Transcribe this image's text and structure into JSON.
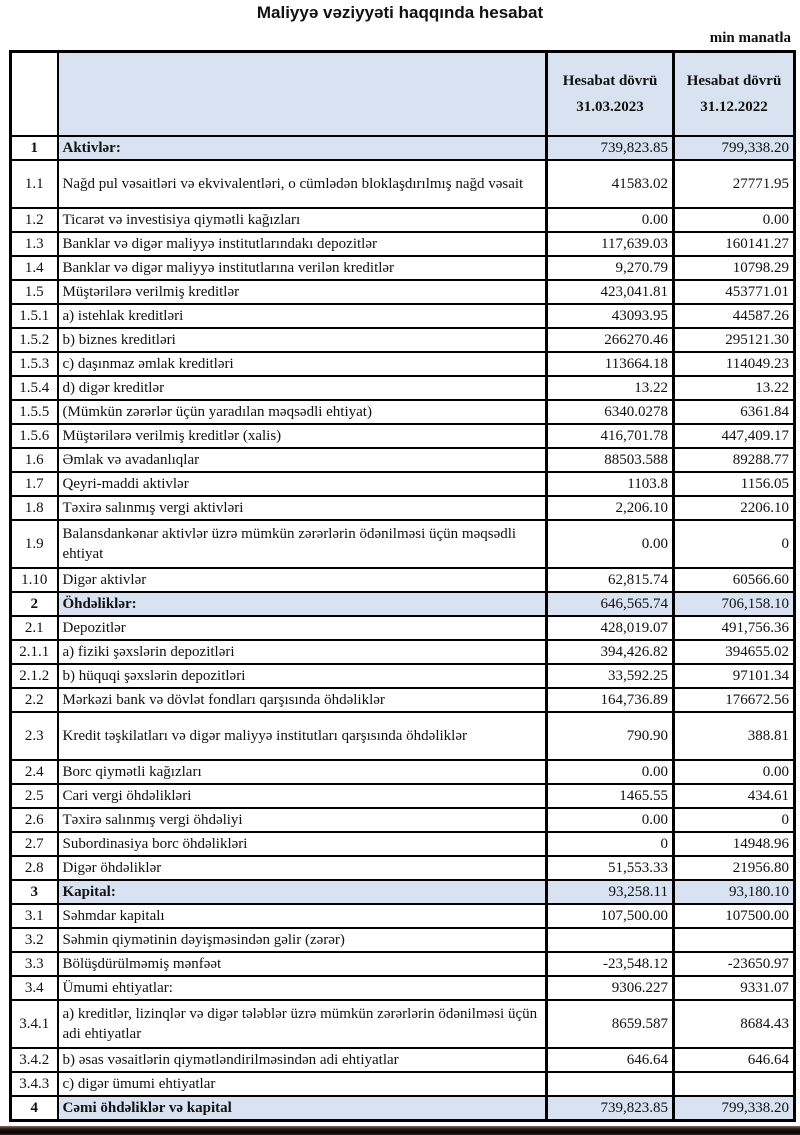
{
  "title": "Maliyyə vəziyyəti haqqında hesabat",
  "unit_note": "min manatla",
  "colors": {
    "header_bg": "#d9e2f1",
    "section_row_bg": "#d9e2f1",
    "border": "#000000",
    "footer_bar": "#140f0e"
  },
  "table": {
    "header": {
      "col_current": {
        "line1": "Hesabat dövrü",
        "line2": "31.03.2023"
      },
      "col_previous": {
        "line1": "Hesabat dövrü",
        "line2": "31.12.2022"
      }
    },
    "rows": [
      {
        "no": "1",
        "label": "Aktivlər:",
        "current": "739,823.85",
        "previous": "799,338.20",
        "section": true,
        "tall": false
      },
      {
        "no": "1.1",
        "label": "Nağd pul vəsaitləri və  ekvivalentləri, o cümlədən bloklaşdırılmış nağd vəsait",
        "current": "41583.02",
        "previous": "27771.95",
        "section": false,
        "tall": true
      },
      {
        "no": "1.2",
        "label": "Ticarət və investisiya qiymətli kağızları",
        "current": "0.00",
        "previous": "0.00",
        "section": false,
        "tall": false
      },
      {
        "no": "1.3",
        "label": "Banklar və digər maliyyə institutlarındakı depozitlər",
        "current": "117,639.03",
        "previous": "160141.27",
        "section": false,
        "tall": false
      },
      {
        "no": "1.4",
        "label": "Banklar və digər maliyyə institutlarına verilən kreditlər",
        "current": "9,270.79",
        "previous": "10798.29",
        "section": false,
        "tall": false
      },
      {
        "no": "1.5",
        "label": "Müştərilərə verilmiş kreditlər",
        "current": "423,041.81",
        "previous": "453771.01",
        "section": false,
        "tall": false
      },
      {
        "no": "1.5.1",
        "label": "a) istehlak kreditləri",
        "current": "43093.95",
        "previous": "44587.26",
        "section": false,
        "tall": false
      },
      {
        "no": "1.5.2",
        "label": "b) biznes kreditləri",
        "current": "266270.46",
        "previous": "295121.30",
        "section": false,
        "tall": false
      },
      {
        "no": "1.5.3",
        "label": "c) daşınmaz əmlak kreditləri",
        "current": "113664.18",
        "previous": "114049.23",
        "section": false,
        "tall": false
      },
      {
        "no": "1.5.4",
        "label": "d) digər kreditlər",
        "current": "13.22",
        "previous": "13.22",
        "section": false,
        "tall": false
      },
      {
        "no": "1.5.5",
        "label": "(Mümkün zərərlər üçün yaradılan məqsədli ehtiyat)",
        "current": "6340.0278",
        "previous": "6361.84",
        "section": false,
        "tall": false
      },
      {
        "no": "1.5.6",
        "label": "Müştərilərə verilmiş kreditlər (xalis)",
        "current": "416,701.78",
        "previous": "447,409.17",
        "section": false,
        "tall": false
      },
      {
        "no": "1.6",
        "label": "Əmlak və avadanlıqlar",
        "current": "88503.588",
        "previous": "89288.77",
        "section": false,
        "tall": false
      },
      {
        "no": "1.7",
        "label": "Qeyri-maddi aktivlər",
        "current": "1103.8",
        "previous": "1156.05",
        "section": false,
        "tall": false
      },
      {
        "no": "1.8",
        "label": "Təxirə salınmış vergi aktivləri",
        "current": "2,206.10",
        "previous": "2206.10",
        "section": false,
        "tall": false
      },
      {
        "no": "1.9",
        "label": "Balansdankənar aktivlər üzrə mümkün zərərlərin ödənilməsi üçün məqsədli ehtiyat",
        "current": "0.00",
        "previous": "0",
        "section": false,
        "tall": true
      },
      {
        "no": "1.10",
        "label": "Digər aktivlər",
        "current": "62,815.74",
        "previous": "60566.60",
        "section": false,
        "tall": false
      },
      {
        "no": "2",
        "label": "Öhdəliklər:",
        "current": "646,565.74",
        "previous": "706,158.10",
        "section": true,
        "tall": false
      },
      {
        "no": "2.1",
        "label": "Depozitlər",
        "current": "428,019.07",
        "previous": "491,756.36",
        "section": false,
        "tall": false
      },
      {
        "no": "2.1.1",
        "label": "a) fiziki şəxslərin depozitləri",
        "current": "394,426.82",
        "previous": "394655.02",
        "section": false,
        "tall": false
      },
      {
        "no": "2.1.2",
        "label": "b) hüquqi şəxslərin depozitləri",
        "current": "33,592.25",
        "previous": "97101.34",
        "section": false,
        "tall": false
      },
      {
        "no": "2.2",
        "label": "Mərkəzi bank və dövlət fondları qarşısında öhdəliklər",
        "current": "164,736.89",
        "previous": "176672.56",
        "section": false,
        "tall": false
      },
      {
        "no": "2.3",
        "label": "Kredit təşkilatları və digər maliyyə institutları qarşısında öhdəliklər",
        "current": "790.90",
        "previous": "388.81",
        "section": false,
        "tall": true
      },
      {
        "no": "2.4",
        "label": "Borc qiymətli kağızları",
        "current": "0.00",
        "previous": "0.00",
        "section": false,
        "tall": false
      },
      {
        "no": "2.5",
        "label": "Cari vergi öhdəlikləri",
        "current": "1465.55",
        "previous": "434.61",
        "section": false,
        "tall": false
      },
      {
        "no": "2.6",
        "label": "Təxirə salınmış vergi öhdəliyi",
        "current": "0.00",
        "previous": "0",
        "section": false,
        "tall": false
      },
      {
        "no": "2.7",
        "label": "Subordinasiya borc öhdəlikləri",
        "current": "0",
        "previous": "14948.96",
        "section": false,
        "tall": false
      },
      {
        "no": "2.8",
        "label": "Digər öhdəliklər",
        "current": "51,553.33",
        "previous": "21956.80",
        "section": false,
        "tall": false
      },
      {
        "no": "3",
        "label": "Kapital:",
        "current": "93,258.11",
        "previous": "93,180.10",
        "section": true,
        "tall": false
      },
      {
        "no": "3.1",
        "label": "Səhmdar kapitalı",
        "current": "107,500.00",
        "previous": "107500.00",
        "section": false,
        "tall": false
      },
      {
        "no": "3.2",
        "label": "Səhmin qiymətinin dəyişməsindən gəlir (zərər)",
        "current": "",
        "previous": "",
        "section": false,
        "tall": false
      },
      {
        "no": "3.3",
        "label": "Bölüşdürülməmiş mənfəət",
        "current": "-23,548.12",
        "previous": "-23650.97",
        "section": false,
        "tall": false
      },
      {
        "no": "3.4",
        "label": "Ümumi ehtiyatlar:",
        "current": "9306.227",
        "previous": "9331.07",
        "section": false,
        "tall": false
      },
      {
        "no": "3.4.1",
        "label": "a) kreditlər, lizinqlər və digər tələblər üzrə mümkün zərərlərin ödənilməsi üçün adi ehtiyatlar",
        "current": "8659.587",
        "previous": "8684.43",
        "section": false,
        "tall": true
      },
      {
        "no": "3.4.2",
        "label": "b) əsas vəsaitlərin qiymətləndirilməsindən adi ehtiyatlar",
        "current": "646.64",
        "previous": "646.64",
        "section": false,
        "tall": false
      },
      {
        "no": "3.4.3",
        "label": "c) digər ümumi ehtiyatlar",
        "current": "",
        "previous": "",
        "section": false,
        "tall": false
      },
      {
        "no": "4",
        "label": "Cəmi öhdəliklər və kapital",
        "current": "739,823.85",
        "previous": "799,338.20",
        "section": true,
        "tall": false
      }
    ]
  }
}
